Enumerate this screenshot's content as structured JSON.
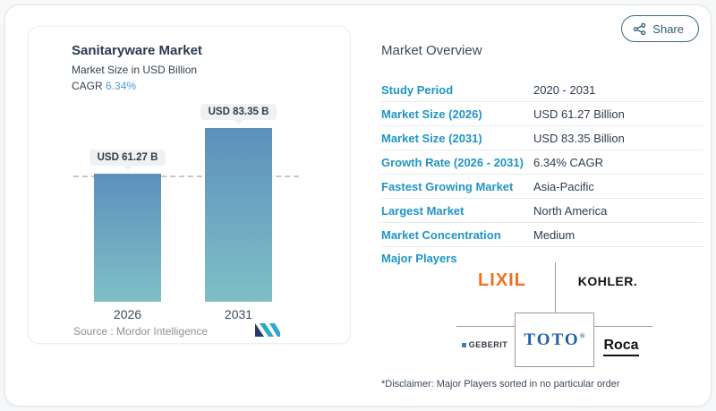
{
  "share": {
    "label": "Share"
  },
  "chart_panel": {
    "title": "Sanitaryware Market",
    "subtitle": "Market Size in USD Billion",
    "cagr_label": "CAGR ",
    "cagr_value": "6.34%",
    "source_label": "Source :  ",
    "source_value": "Mordor Intelligence"
  },
  "chart_data": {
    "type": "bar",
    "title": "Sanitaryware Market",
    "subtitle": "Market Size in USD Billion",
    "unit": "USD Billion",
    "cagr": "6.34%",
    "categories": [
      "2026",
      "2031"
    ],
    "values": [
      61.27,
      83.35
    ],
    "value_labels": [
      "USD 61.27 B",
      "USD 83.35 B"
    ],
    "reference_line": {
      "style": "dashed",
      "at_value": 61.27
    },
    "legend": false,
    "grid": false,
    "bar_gradient_top": "#5c90bc",
    "bar_gradient_bottom": "#7ec0c6",
    "source": "Mordor Intelligence"
  },
  "overview": {
    "title": "Market Overview",
    "rows": [
      {
        "label": "Study Period",
        "value": "2020 - 2031"
      },
      {
        "label": "Market Size (2026)",
        "value": "USD 61.27 Billion"
      },
      {
        "label": "Market Size (2031)",
        "value": "USD 83.35 Billion"
      },
      {
        "label": "Growth Rate (2026 - 2031)",
        "value": "6.34% CAGR"
      },
      {
        "label": "Fastest Growing Market",
        "value": "Asia-Pacific"
      },
      {
        "label": "Largest Market",
        "value": "North America"
      },
      {
        "label": "Market Concentration",
        "value": "Medium"
      }
    ],
    "major_players_label": "Major Players",
    "players": [
      {
        "name": "LIXIL",
        "color": "#ee7023"
      },
      {
        "name": "KOHLER.",
        "color": "#111111"
      },
      {
        "name": "GEBERIT",
        "color": "#333740"
      },
      {
        "name": "TOTO",
        "mark": "®",
        "color": "#2060a9"
      },
      {
        "name": "Roca",
        "color": "#111111"
      }
    ],
    "disclaimer": "*Disclaimer: Major Players sorted in no particular order"
  },
  "colors": {
    "accent_blue": "#2095c6",
    "navy": "#2e3d4f",
    "cagr_blue": "#4e9cd5",
    "share": "#2f5f75",
    "connector_gray": "#9b9b9b"
  }
}
